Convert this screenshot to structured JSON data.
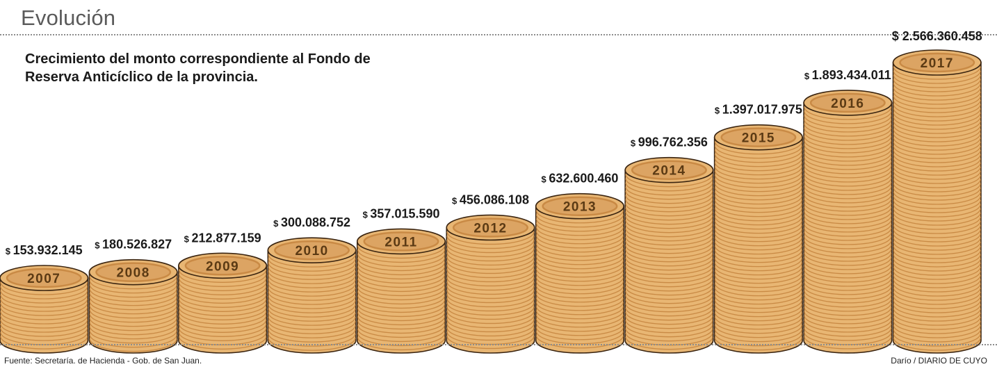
{
  "header": {
    "title": "Evolución",
    "subtitle": "Crecimiento del monto correspondiente al Fondo de\nReserva Anticíclico de la provincia."
  },
  "footer": {
    "source": "Fuente: Secretaría. de Hacienda - Gob. de San Juan.",
    "credit": "Darío / DIARIO DE CUYO"
  },
  "colors": {
    "coin_fill": "#e8b673",
    "coin_edge": "#c98a45",
    "coin_outline": "#3a2410",
    "coin_inner": "#dca463"
  },
  "chart_data": {
    "type": "bar",
    "title": "Crecimiento del monto correspondiente al Fondo de Reserva Anticíclico de la provincia.",
    "currency_symbol": "$",
    "categories": [
      "2007",
      "2008",
      "2009",
      "2010",
      "2011",
      "2012",
      "2013",
      "2014",
      "2015",
      "2016",
      "2017"
    ],
    "values": [
      153932145,
      180526827,
      212877159,
      300088752,
      357015590,
      456086108,
      632600460,
      996762356,
      1397017975,
      1893434011,
      2566360458
    ],
    "value_labels": [
      "153.932.145",
      "180.526.827",
      "212.877.159",
      "300.088.752",
      "357.015.590",
      "456.086.108",
      "632.600.460",
      "996.762.356",
      "1.397.017.975",
      "1.893.434.011",
      "2.566.360.458"
    ],
    "xlabel": "",
    "ylabel": "",
    "grid": false,
    "legend": "none"
  }
}
